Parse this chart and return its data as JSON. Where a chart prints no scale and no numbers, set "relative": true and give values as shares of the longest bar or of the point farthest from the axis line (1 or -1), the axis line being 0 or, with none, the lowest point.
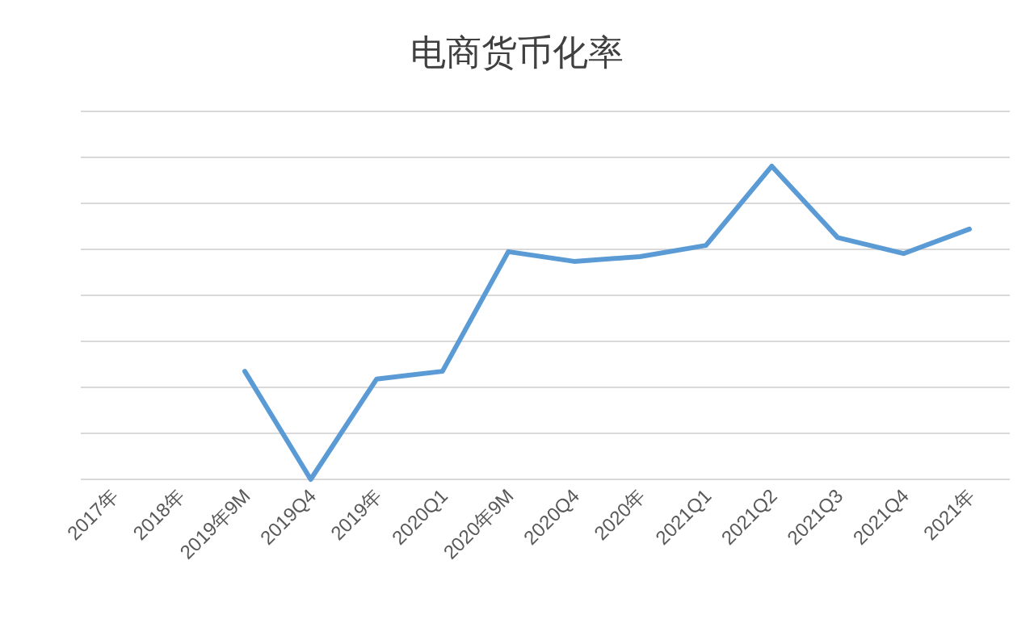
{
  "chart_data": {
    "type": "line",
    "title": "电商货币化率",
    "categories": [
      "2017年",
      "2018年",
      "2019年9M",
      "2019Q4",
      "2019年",
      "2020Q1",
      "2020年9M",
      "2020Q4",
      "2020年",
      "2021Q1",
      "2021Q2",
      "2021Q3",
      "2021Q4",
      "2021年"
    ],
    "series": [
      {
        "color": "#5b9bd5",
        "values": [
          null,
          null,
          0.345,
          0,
          0.32,
          0.345,
          0.727,
          0.696,
          0.711,
          0.747,
          1,
          0.772,
          0.721,
          0.799
        ]
      }
    ],
    "relative": true,
    "grid": "y",
    "line_style": "solid"
  }
}
